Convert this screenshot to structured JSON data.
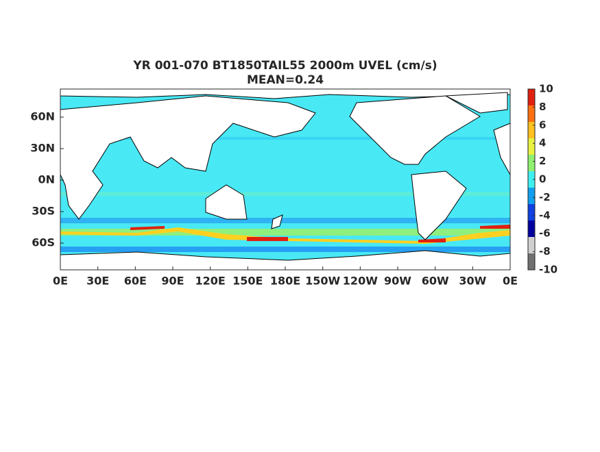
{
  "title": [
    "YR 001-070 BT1850TAIL55 2000m UVEL (cm/s)",
    "MEAN=0.24"
  ],
  "map": {
    "xticks": [
      "0E",
      "30E",
      "60E",
      "90E",
      "120E",
      "150E",
      "180E",
      "150W",
      "120W",
      "90W",
      "60W",
      "30W",
      "0E"
    ],
    "yticks": [
      "60N",
      "30N",
      "0N",
      "30S",
      "60S"
    ]
  },
  "colorbar": {
    "ticks": [
      "10",
      "8",
      "6",
      "4",
      "2",
      "0",
      "-2",
      "-4",
      "-6",
      "-8",
      "-10"
    ],
    "colors": [
      "#e02010",
      "#ff7010",
      "#ffc020",
      "#e8f040",
      "#90f070",
      "#40f0f0",
      "#10a0f0",
      "#1040e0",
      "#0000a0",
      "#d0d0d0",
      "#707070"
    ]
  }
}
